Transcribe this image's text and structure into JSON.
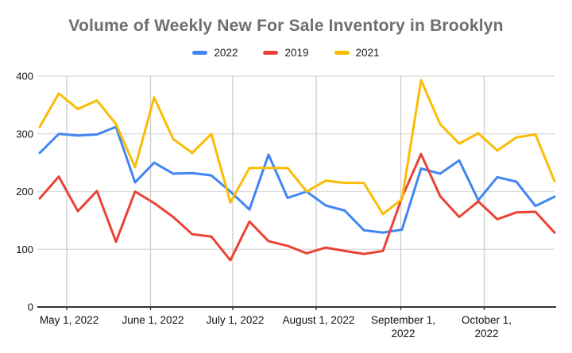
{
  "title": "Volume of Weekly New For Sale Inventory in Brooklyn",
  "legend": {
    "items": [
      {
        "label": "2022",
        "color": "#4285F4"
      },
      {
        "label": "2019",
        "color": "#EA4335"
      },
      {
        "label": "2021",
        "color": "#FBBC04"
      }
    ]
  },
  "chart_data": {
    "type": "line",
    "title": "Volume of Weekly New For Sale Inventory in Brooklyn",
    "xlabel": "",
    "ylabel": "",
    "grid": true,
    "legend_position": "top",
    "n_points": 28,
    "x_unit": "week",
    "y_axis": {
      "min": 0,
      "max": 400,
      "tick_step": 100,
      "tick_labels": [
        "0",
        "100",
        "200",
        "300",
        "400"
      ]
    },
    "x_axis": {
      "ticks": [
        {
          "label": "May 1, 2022",
          "line2": "",
          "pos": 0.0554
        },
        {
          "label": "June 1, 2022",
          "line2": "",
          "pos": 0.2177
        },
        {
          "label": "July 1, 2022",
          "line2": "",
          "pos": 0.3769
        },
        {
          "label": "August 1, 2022",
          "line2": "",
          "pos": 0.5385
        },
        {
          "label": "September 1,",
          "line2": "2022",
          "pos": 0.7023
        },
        {
          "label": "October 1,",
          "line2": "2022",
          "pos": 0.8638
        }
      ]
    },
    "series": [
      {
        "name": "2022",
        "color": "#4285F4",
        "values": [
          267,
          300,
          297,
          299,
          312,
          216,
          250,
          231,
          232,
          228,
          200,
          169,
          264,
          189,
          200,
          176,
          167,
          133,
          129,
          134,
          240,
          231,
          254,
          185,
          225,
          217,
          175,
          191
        ]
      },
      {
        "name": "2019",
        "color": "#EA4335",
        "values": [
          188,
          226,
          166,
          201,
          113,
          200,
          180,
          156,
          126,
          122,
          81,
          148,
          114,
          106,
          93,
          103,
          97,
          92,
          97,
          190,
          265,
          192,
          156,
          183,
          152,
          164,
          165,
          129
        ]
      },
      {
        "name": "2021",
        "color": "#FBBC04",
        "values": [
          312,
          370,
          343,
          358,
          317,
          242,
          363,
          291,
          267,
          300,
          181,
          241,
          241,
          241,
          200,
          219,
          215,
          215,
          161,
          187,
          393,
          317,
          283,
          301,
          271,
          294,
          299,
          218
        ]
      }
    ]
  }
}
